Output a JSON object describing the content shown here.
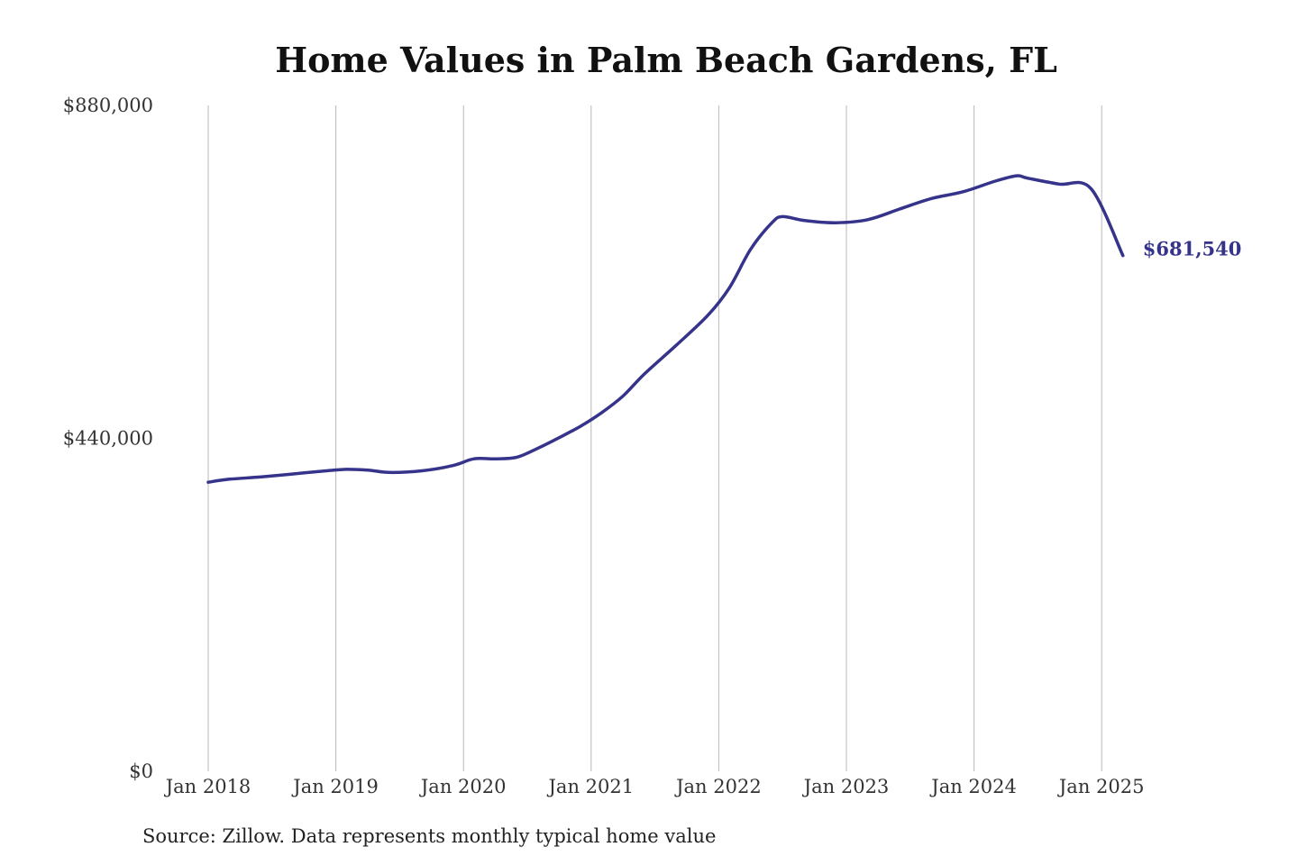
{
  "chart_data": {
    "type": "line",
    "title": "Home Values in Palm Beach Gardens, FL",
    "source": "Source: Zillow. Data represents monthly typical home value",
    "xlabel": "",
    "ylabel": "",
    "ylim": [
      0,
      880000
    ],
    "xlim": [
      "2018-01",
      "2025-03"
    ],
    "grid": {
      "x": true,
      "y": false
    },
    "legend": "none",
    "line_color": "#35338a",
    "y_ticks": [
      {
        "value": 0,
        "label": "$0"
      },
      {
        "value": 440000,
        "label": "$440,000"
      },
      {
        "value": 880000,
        "label": "$880,000"
      }
    ],
    "x_ticks": [
      {
        "date": "2018-01",
        "label": "Jan 2018"
      },
      {
        "date": "2019-01",
        "label": "Jan 2019"
      },
      {
        "date": "2020-01",
        "label": "Jan 2020"
      },
      {
        "date": "2021-01",
        "label": "Jan 2021"
      },
      {
        "date": "2022-01",
        "label": "Jan 2022"
      },
      {
        "date": "2023-01",
        "label": "Jan 2023"
      },
      {
        "date": "2024-01",
        "label": "Jan 2024"
      },
      {
        "date": "2025-01",
        "label": "Jan 2025"
      }
    ],
    "series": [
      {
        "x": [
          "2018-01",
          "2018-03",
          "2018-06",
          "2018-09",
          "2018-12",
          "2019-02",
          "2019-04",
          "2019-06",
          "2019-09",
          "2019-12",
          "2020-02",
          "2020-04",
          "2020-06",
          "2020-08",
          "2020-10",
          "2020-12",
          "2021-02",
          "2021-04",
          "2021-06",
          "2021-09",
          "2021-12",
          "2022-02",
          "2022-04",
          "2022-06",
          "2022-07",
          "2022-09",
          "2022-12",
          "2023-03",
          "2023-06",
          "2023-09",
          "2023-12",
          "2024-03",
          "2024-05",
          "2024-06",
          "2024-09",
          "2024-12",
          "2025-03"
        ],
        "values": [
          382000,
          386000,
          389000,
          393000,
          397000,
          399000,
          398000,
          395000,
          397000,
          404000,
          413000,
          413000,
          415000,
          427000,
          441000,
          456000,
          474000,
          496000,
          525000,
          563000,
          603000,
          639000,
          690000,
          725000,
          733000,
          728000,
          725000,
          729000,
          743000,
          757000,
          766000,
          780000,
          787000,
          784000,
          776000,
          770000,
          681540
        ]
      }
    ],
    "end_label": "$681,540",
    "annotations": [
      {
        "text": "$681,540",
        "anchor": "last-point"
      }
    ]
  }
}
